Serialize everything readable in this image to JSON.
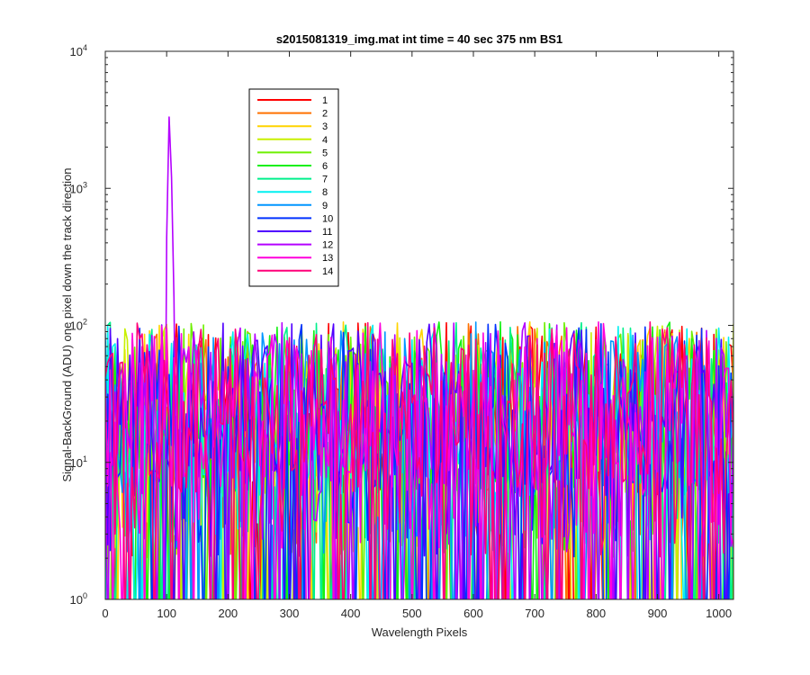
{
  "chart_data": {
    "type": "line",
    "title": "s2015081319_img.mat int time = 40 sec  375 nm BS1",
    "xlabel": "Wavelength Pixels",
    "ylabel": "Signal-BackGround (ADU) one pixel down the track direction",
    "xlim": [
      0,
      1024
    ],
    "ylim": [
      1,
      10000
    ],
    "yscale": "log",
    "x_ticks": [
      0,
      100,
      200,
      300,
      400,
      500,
      600,
      700,
      800,
      900,
      1000
    ],
    "y_ticks": [
      {
        "value": 1,
        "base": "10",
        "exp": "0"
      },
      {
        "value": 10,
        "base": "10",
        "exp": "1"
      },
      {
        "value": 100,
        "base": "10",
        "exp": "2"
      },
      {
        "value": 1000,
        "base": "10",
        "exp": "3"
      },
      {
        "value": 10000,
        "base": "10",
        "exp": "4"
      }
    ],
    "grid": false,
    "legend_position": "top-left",
    "noise_range": [
      1,
      100
    ],
    "series": [
      {
        "name": "1",
        "color": "#ff0000"
      },
      {
        "name": "2",
        "color": "#ff7200"
      },
      {
        "name": "3",
        "color": "#ffd400"
      },
      {
        "name": "4",
        "color": "#c8f000"
      },
      {
        "name": "5",
        "color": "#6ef000"
      },
      {
        "name": "6",
        "color": "#14f014"
      },
      {
        "name": "7",
        "color": "#00f08c"
      },
      {
        "name": "8",
        "color": "#00f0f0"
      },
      {
        "name": "9",
        "color": "#0096ff"
      },
      {
        "name": "10",
        "color": "#0032ff"
      },
      {
        "name": "11",
        "color": "#5000ff"
      },
      {
        "name": "12",
        "color": "#b400ff",
        "peak": {
          "x": 105,
          "y": 5500
        }
      },
      {
        "name": "13",
        "color": "#ff00dc"
      },
      {
        "name": "14",
        "color": "#ff0078"
      }
    ]
  }
}
